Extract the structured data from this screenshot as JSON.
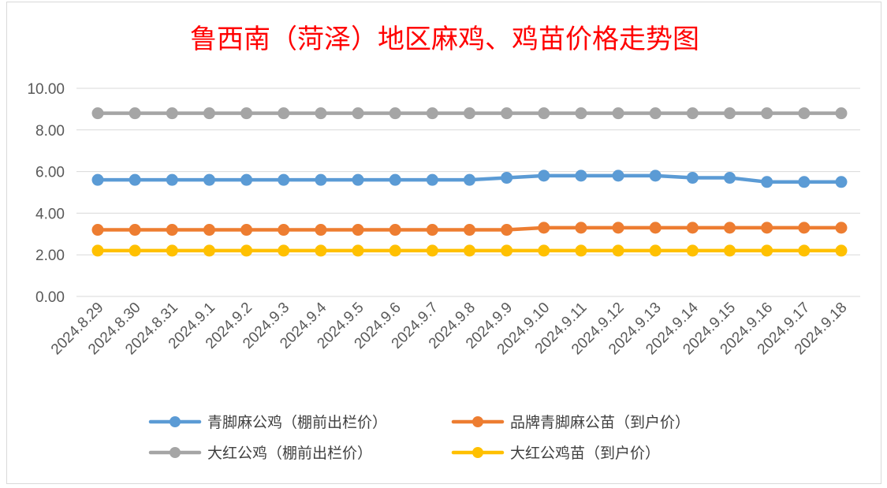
{
  "chart_data": {
    "type": "line",
    "title": "鲁西南（菏泽）地区麻鸡、鸡苗价格走势图",
    "xlabel": "",
    "ylabel": "",
    "ylim": [
      0,
      10
    ],
    "yticks": [
      "0.00",
      "2.00",
      "4.00",
      "6.00",
      "8.00",
      "10.00"
    ],
    "grid": true,
    "legend_position": "bottom",
    "categories": [
      "2024.8.29",
      "2024.8.30",
      "2024.8.31",
      "2024.9.1",
      "2024.9.2",
      "2024.9.3",
      "2024.9.4",
      "2024.9.5",
      "2024.9.6",
      "2024.9.7",
      "2024.9.8",
      "2024.9.9",
      "2024.9.10",
      "2024.9.11",
      "2024.9.12",
      "2024.9.13",
      "2024.9.14",
      "2024.9.15",
      "2024.9.16",
      "2024.9.17",
      "2024.9.18"
    ],
    "series": [
      {
        "name": "青脚麻公鸡（棚前出栏价）",
        "color": "#5b9bd5",
        "values": [
          5.6,
          5.6,
          5.6,
          5.6,
          5.6,
          5.6,
          5.6,
          5.6,
          5.6,
          5.6,
          5.6,
          5.7,
          5.8,
          5.8,
          5.8,
          5.8,
          5.7,
          5.7,
          5.5,
          5.5,
          5.5
        ]
      },
      {
        "name": "品牌青脚麻公苗（到户价）",
        "color": "#ed7d31",
        "values": [
          3.2,
          3.2,
          3.2,
          3.2,
          3.2,
          3.2,
          3.2,
          3.2,
          3.2,
          3.2,
          3.2,
          3.2,
          3.3,
          3.3,
          3.3,
          3.3,
          3.3,
          3.3,
          3.3,
          3.3,
          3.3
        ]
      },
      {
        "name": "大红公鸡（棚前出栏价）",
        "color": "#a5a5a5",
        "values": [
          8.8,
          8.8,
          8.8,
          8.8,
          8.8,
          8.8,
          8.8,
          8.8,
          8.8,
          8.8,
          8.8,
          8.8,
          8.8,
          8.8,
          8.8,
          8.8,
          8.8,
          8.8,
          8.8,
          8.8,
          8.8
        ]
      },
      {
        "name": "大红公鸡苗（到户价）",
        "color": "#ffc000",
        "values": [
          2.2,
          2.2,
          2.2,
          2.2,
          2.2,
          2.2,
          2.2,
          2.2,
          2.2,
          2.2,
          2.2,
          2.2,
          2.2,
          2.2,
          2.2,
          2.2,
          2.2,
          2.2,
          2.2,
          2.2,
          2.2
        ]
      }
    ]
  }
}
